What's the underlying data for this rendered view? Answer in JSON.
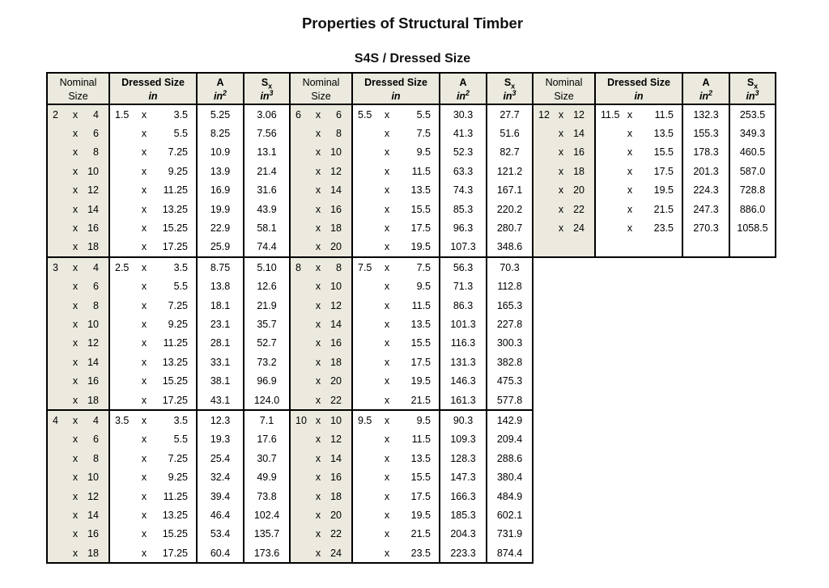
{
  "title": "Properties of Structural Timber",
  "subtitle": "S4S / Dressed Size",
  "x_separator": "x",
  "colors": {
    "header_bg": "#ece9de",
    "border": "#000000",
    "page_bg": "#ffffff"
  },
  "header": {
    "nominal_top": "Nominal",
    "nominal_bottom": "Size",
    "dressed_top": "Dressed Size",
    "dressed_bottom": "in",
    "area_top": "A",
    "area_unit_base": "in",
    "area_unit_exp": "2",
    "sx_base": "S",
    "sx_sub": "x",
    "sx_unit_base": "in",
    "sx_unit_exp": "3"
  },
  "groups": [
    {
      "blocks": [
        {
          "rows": [
            [
              "2",
              "4",
              "1.5",
              "3.5",
              "5.25",
              "3.06"
            ],
            [
              "",
              "6",
              "",
              "5.5",
              "8.25",
              "7.56"
            ],
            [
              "",
              "8",
              "",
              "7.25",
              "10.9",
              "13.1"
            ],
            [
              "",
              "10",
              "",
              "9.25",
              "13.9",
              "21.4"
            ],
            [
              "",
              "12",
              "",
              "11.25",
              "16.9",
              "31.6"
            ],
            [
              "",
              "14",
              "",
              "13.25",
              "19.9",
              "43.9"
            ],
            [
              "",
              "16",
              "",
              "15.25",
              "22.9",
              "58.1"
            ],
            [
              "",
              "18",
              "",
              "17.25",
              "25.9",
              "74.4"
            ]
          ]
        },
        {
          "rows": [
            [
              "3",
              "4",
              "2.5",
              "3.5",
              "8.75",
              "5.10"
            ],
            [
              "",
              "6",
              "",
              "5.5",
              "13.8",
              "12.6"
            ],
            [
              "",
              "8",
              "",
              "7.25",
              "18.1",
              "21.9"
            ],
            [
              "",
              "10",
              "",
              "9.25",
              "23.1",
              "35.7"
            ],
            [
              "",
              "12",
              "",
              "11.25",
              "28.1",
              "52.7"
            ],
            [
              "",
              "14",
              "",
              "13.25",
              "33.1",
              "73.2"
            ],
            [
              "",
              "16",
              "",
              "15.25",
              "38.1",
              "96.9"
            ],
            [
              "",
              "18",
              "",
              "17.25",
              "43.1",
              "124.0"
            ]
          ]
        },
        {
          "rows": [
            [
              "4",
              "4",
              "3.5",
              "3.5",
              "12.3",
              "7.1"
            ],
            [
              "",
              "6",
              "",
              "5.5",
              "19.3",
              "17.6"
            ],
            [
              "",
              "8",
              "",
              "7.25",
              "25.4",
              "30.7"
            ],
            [
              "",
              "10",
              "",
              "9.25",
              "32.4",
              "49.9"
            ],
            [
              "",
              "12",
              "",
              "11.25",
              "39.4",
              "73.8"
            ],
            [
              "",
              "14",
              "",
              "13.25",
              "46.4",
              "102.4"
            ],
            [
              "",
              "16",
              "",
              "15.25",
              "53.4",
              "135.7"
            ],
            [
              "",
              "18",
              "",
              "17.25",
              "60.4",
              "173.6"
            ]
          ]
        }
      ]
    },
    {
      "blocks": [
        {
          "rows": [
            [
              "6",
              "6",
              "5.5",
              "5.5",
              "30.3",
              "27.7"
            ],
            [
              "",
              "8",
              "",
              "7.5",
              "41.3",
              "51.6"
            ],
            [
              "",
              "10",
              "",
              "9.5",
              "52.3",
              "82.7"
            ],
            [
              "",
              "12",
              "",
              "11.5",
              "63.3",
              "121.2"
            ],
            [
              "",
              "14",
              "",
              "13.5",
              "74.3",
              "167.1"
            ],
            [
              "",
              "16",
              "",
              "15.5",
              "85.3",
              "220.2"
            ],
            [
              "",
              "18",
              "",
              "17.5",
              "96.3",
              "280.7"
            ],
            [
              "",
              "20",
              "",
              "19.5",
              "107.3",
              "348.6"
            ]
          ]
        },
        {
          "rows": [
            [
              "8",
              "8",
              "7.5",
              "7.5",
              "56.3",
              "70.3"
            ],
            [
              "",
              "10",
              "",
              "9.5",
              "71.3",
              "112.8"
            ],
            [
              "",
              "12",
              "",
              "11.5",
              "86.3",
              "165.3"
            ],
            [
              "",
              "14",
              "",
              "13.5",
              "101.3",
              "227.8"
            ],
            [
              "",
              "16",
              "",
              "15.5",
              "116.3",
              "300.3"
            ],
            [
              "",
              "18",
              "",
              "17.5",
              "131.3",
              "382.8"
            ],
            [
              "",
              "20",
              "",
              "19.5",
              "146.3",
              "475.3"
            ],
            [
              "",
              "22",
              "",
              "21.5",
              "161.3",
              "577.8"
            ]
          ]
        },
        {
          "rows": [
            [
              "10",
              "10",
              "9.5",
              "9.5",
              "90.3",
              "142.9"
            ],
            [
              "",
              "12",
              "",
              "11.5",
              "109.3",
              "209.4"
            ],
            [
              "",
              "14",
              "",
              "13.5",
              "128.3",
              "288.6"
            ],
            [
              "",
              "16",
              "",
              "15.5",
              "147.3",
              "380.4"
            ],
            [
              "",
              "18",
              "",
              "17.5",
              "166.3",
              "484.9"
            ],
            [
              "",
              "20",
              "",
              "19.5",
              "185.3",
              "602.1"
            ],
            [
              "",
              "22",
              "",
              "21.5",
              "204.3",
              "731.9"
            ],
            [
              "",
              "24",
              "",
              "23.5",
              "223.3",
              "874.4"
            ]
          ]
        }
      ]
    },
    {
      "blocks": [
        {
          "rows": [
            [
              "12",
              "12",
              "11.5",
              "11.5",
              "132.3",
              "253.5"
            ],
            [
              "",
              "14",
              "",
              "13.5",
              "155.3",
              "349.3"
            ],
            [
              "",
              "16",
              "",
              "15.5",
              "178.3",
              "460.5"
            ],
            [
              "",
              "18",
              "",
              "17.5",
              "201.3",
              "587.0"
            ],
            [
              "",
              "20",
              "",
              "19.5",
              "224.3",
              "728.8"
            ],
            [
              "",
              "22",
              "",
              "21.5",
              "247.3",
              "886.0"
            ],
            [
              "",
              "24",
              "",
              "23.5",
              "270.3",
              "1058.5"
            ],
            [
              "",
              "",
              "",
              "",
              "",
              ""
            ]
          ]
        }
      ]
    }
  ]
}
